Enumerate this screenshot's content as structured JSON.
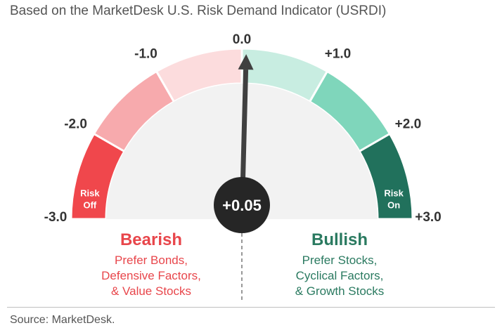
{
  "title": "Based on the MarketDesk U.S. Risk Demand Indicator (USRDI)",
  "source": "Source: MarketDesk.",
  "chart_data": {
    "type": "gauge",
    "title": "Based on the MarketDesk U.S. Risk Demand Indicator (USRDI)",
    "range": [
      -3.0,
      3.0
    ],
    "value": 0.05,
    "readout": "+0.05",
    "ticks": [
      {
        "value": -3,
        "label": "-3.0"
      },
      {
        "value": -2,
        "label": "-2.0"
      },
      {
        "value": -1,
        "label": "-1.0"
      },
      {
        "value": 0,
        "label": "0.0"
      },
      {
        "value": 1,
        "label": "+1.0"
      },
      {
        "value": 2,
        "label": "+2.0"
      },
      {
        "value": 3,
        "label": "+3.0"
      }
    ],
    "segments": [
      {
        "from": -3,
        "to": -2,
        "color": "#f0474c"
      },
      {
        "from": -2,
        "to": -1,
        "color": "#f7aaad"
      },
      {
        "from": -1,
        "to": 0,
        "color": "#fcdcdd"
      },
      {
        "from": 0,
        "to": 1,
        "color": "#c8ede1"
      },
      {
        "from": 1,
        "to": 2,
        "color": "#7fd6bb"
      },
      {
        "from": 2,
        "to": 3,
        "color": "#21715c"
      }
    ],
    "zone_labels": {
      "left": [
        "Risk",
        "Off"
      ],
      "right": [
        "Risk",
        "On"
      ]
    }
  },
  "bearish": {
    "heading": "Bearish",
    "lines": [
      "Prefer Bonds,",
      "Defensive Factors,",
      "& Value Stocks"
    ]
  },
  "bullish": {
    "heading": "Bullish",
    "lines": [
      "Prefer Stocks,",
      "Cyclical Factors,",
      "& Growth Stocks"
    ]
  },
  "colors": {
    "bearish": "#e8464b",
    "bullish": "#2a7a60",
    "inner": "#f2f2f2",
    "needle": "#404040",
    "hub": "#262626"
  }
}
